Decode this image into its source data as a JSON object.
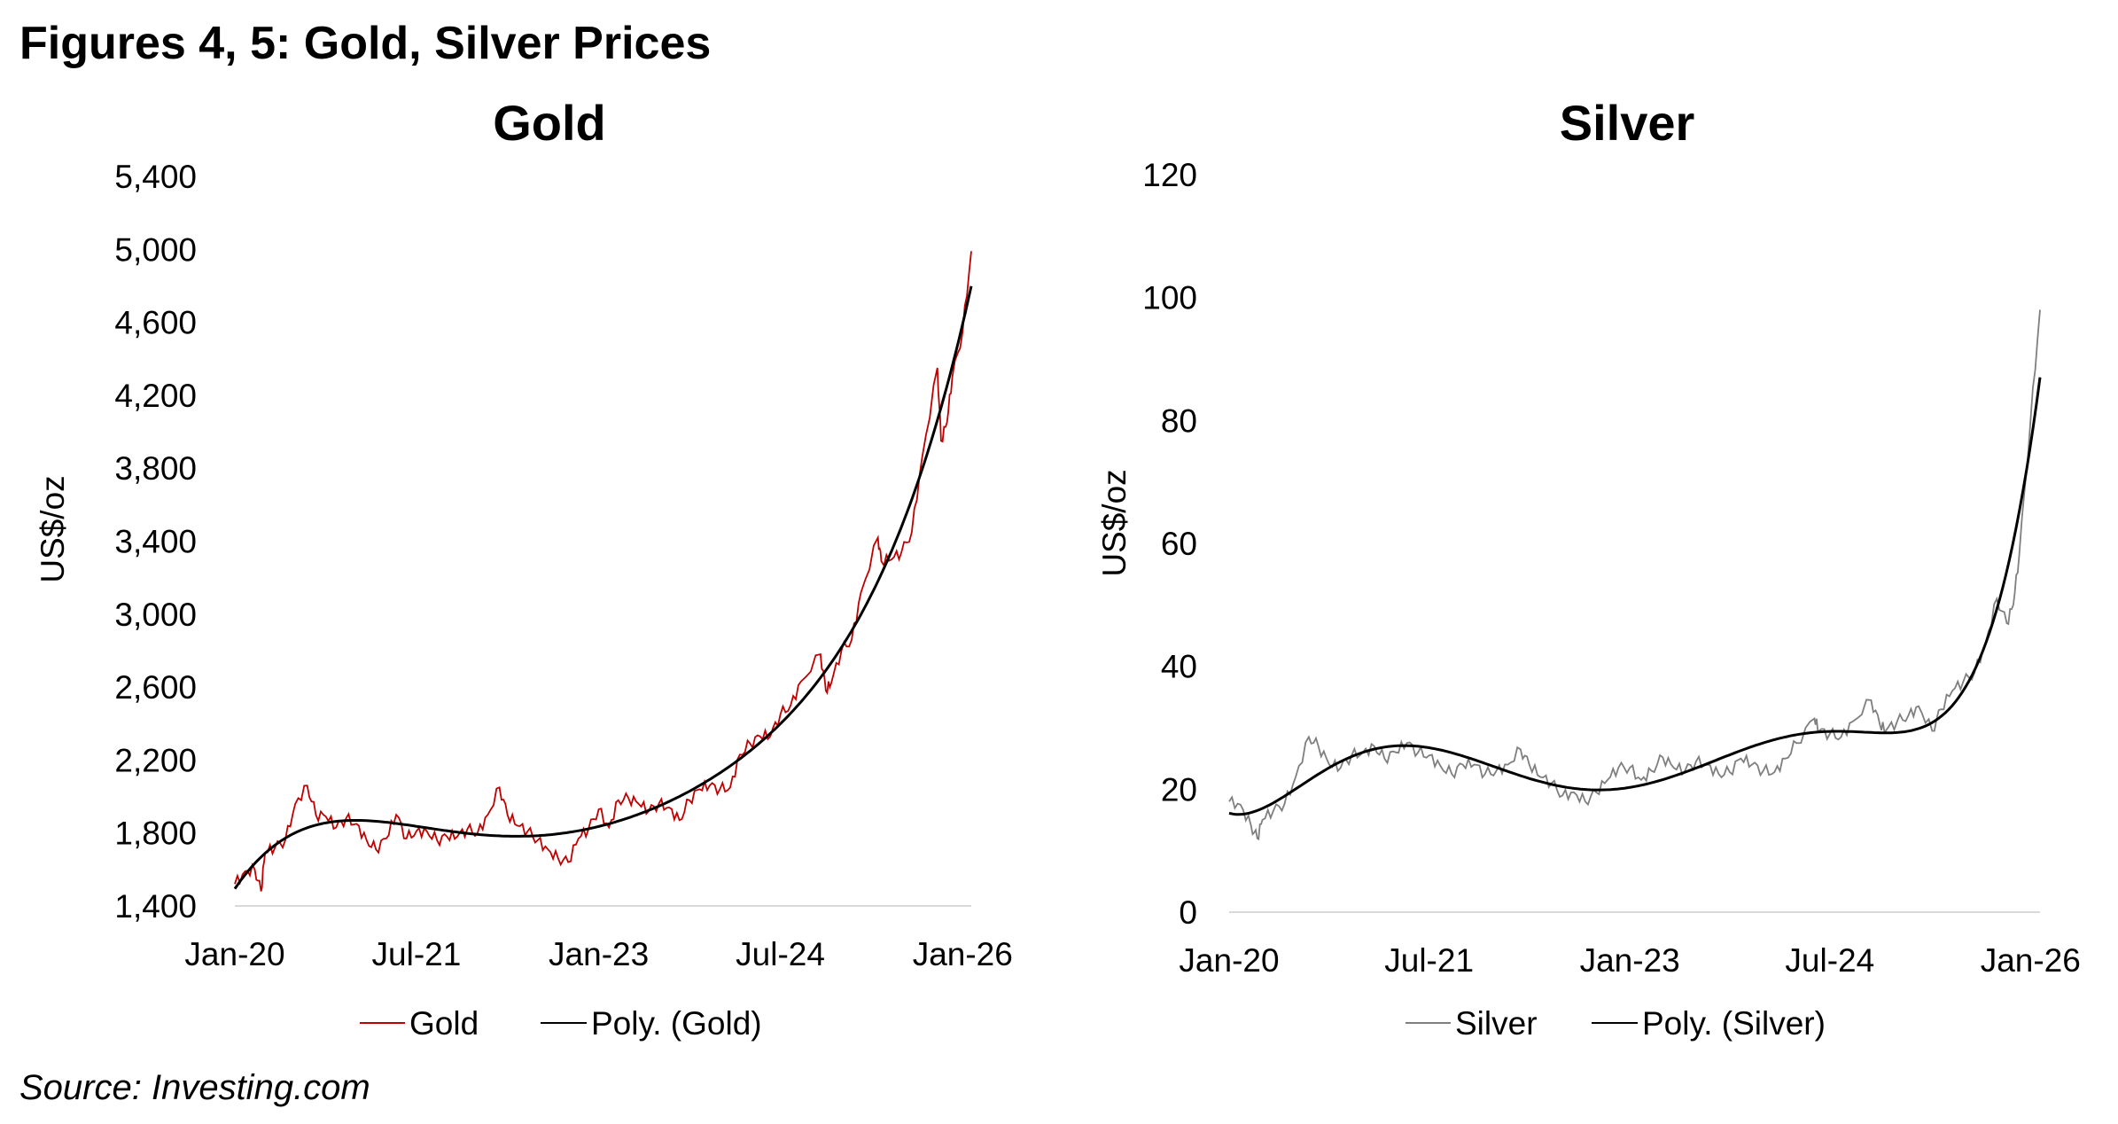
{
  "figure_title": "Figures 4, 5: Gold, Silver Prices",
  "source": "Source: Investing.com",
  "chart_data": [
    {
      "type": "line",
      "title": "Gold",
      "ylabel": "US$/oz",
      "xlabel": "",
      "ylim": [
        1400,
        5400
      ],
      "yticks": [
        "1,400",
        "1,800",
        "2,200",
        "2,600",
        "3,000",
        "3,400",
        "3,800",
        "4,200",
        "4,600",
        "5,000",
        "5,400"
      ],
      "ytick_values": [
        1400,
        1800,
        2200,
        2600,
        3000,
        3400,
        3800,
        4200,
        4600,
        5000,
        5400
      ],
      "xlim": [
        "2020-01-01",
        "2026-01-27"
      ],
      "xticks": [
        "Jan-20",
        "Jul-21",
        "Jan-23",
        "Jul-24",
        "Jan-26"
      ],
      "xtick_dates": [
        "2020-01-01",
        "2021-07-01",
        "2023-01-01",
        "2024-07-01",
        "2026-01-01"
      ],
      "grid": false,
      "legend": "bottom",
      "colors": {
        "series": "#c00000",
        "trend": "#000000",
        "baseline": "#d9d9d9"
      },
      "series": [
        {
          "name": "Gold",
          "dates": [
            "2020-01-01",
            "2020-02-01",
            "2020-03-01",
            "2020-03-20",
            "2020-04-01",
            "2020-05-01",
            "2020-06-01",
            "2020-07-01",
            "2020-08-06",
            "2020-09-01",
            "2020-10-01",
            "2020-11-01",
            "2020-12-01",
            "2021-01-01",
            "2021-02-01",
            "2021-03-01",
            "2021-04-01",
            "2021-05-01",
            "2021-06-01",
            "2021-07-01",
            "2021-08-01",
            "2021-09-01",
            "2021-10-01",
            "2021-11-01",
            "2021-12-01",
            "2022-01-01",
            "2022-02-01",
            "2022-03-08",
            "2022-04-01",
            "2022-05-01",
            "2022-06-01",
            "2022-07-01",
            "2022-08-01",
            "2022-09-01",
            "2022-10-01",
            "2022-11-01",
            "2022-12-01",
            "2023-01-01",
            "2023-02-01",
            "2023-03-01",
            "2023-04-01",
            "2023-05-01",
            "2023-06-01",
            "2023-07-01",
            "2023-08-01",
            "2023-09-01",
            "2023-10-01",
            "2023-11-01",
            "2023-12-01",
            "2024-01-01",
            "2024-02-01",
            "2024-03-01",
            "2024-04-01",
            "2024-05-01",
            "2024-06-01",
            "2024-07-01",
            "2024-08-01",
            "2024-09-01",
            "2024-10-30",
            "2024-11-15",
            "2024-12-01",
            "2025-01-01",
            "2025-02-01",
            "2025-03-01",
            "2025-04-21",
            "2025-05-01",
            "2025-06-01",
            "2025-07-01",
            "2025-08-01",
            "2025-09-01",
            "2025-10-17",
            "2025-10-28",
            "2025-11-15",
            "2025-12-01",
            "2026-01-01",
            "2026-01-27"
          ],
          "values": [
            1520,
            1590,
            1600,
            1480,
            1690,
            1720,
            1760,
            1960,
            2060,
            1900,
            1890,
            1830,
            1880,
            1850,
            1760,
            1710,
            1770,
            1900,
            1770,
            1810,
            1810,
            1760,
            1780,
            1780,
            1820,
            1800,
            1900,
            2050,
            1900,
            1840,
            1810,
            1760,
            1710,
            1660,
            1640,
            1770,
            1820,
            1930,
            1830,
            1980,
            1990,
            1960,
            1920,
            1960,
            1940,
            1870,
            1980,
            2040,
            2060,
            2040,
            2050,
            2230,
            2290,
            2330,
            2330,
            2450,
            2500,
            2630,
            2780,
            2580,
            2620,
            2800,
            2860,
            3120,
            3420,
            3290,
            3300,
            3340,
            3450,
            3860,
            4350,
            3950,
            4050,
            4300,
            4550,
            4990
          ]
        }
      ],
      "trendline": {
        "name": "Poly. (Gold)",
        "type": "polynomial"
      }
    },
    {
      "type": "line",
      "title": "Silver",
      "ylabel": "US$/oz",
      "xlabel": "",
      "ylim": [
        0,
        120
      ],
      "yticks": [
        "0",
        "20",
        "40",
        "60",
        "80",
        "100",
        "120"
      ],
      "ytick_values": [
        0,
        20,
        40,
        60,
        80,
        100,
        120
      ],
      "xlim": [
        "2020-01-01",
        "2026-01-27"
      ],
      "xticks": [
        "Jan-20",
        "Jul-21",
        "Jan-23",
        "Jul-24",
        "Jan-26"
      ],
      "xtick_dates": [
        "2020-01-01",
        "2021-07-01",
        "2023-01-01",
        "2024-07-01",
        "2026-01-01"
      ],
      "grid": false,
      "legend": "bottom",
      "colors": {
        "series": "#7f7f7f",
        "trend": "#000000",
        "baseline": "#d9d9d9"
      },
      "series": [
        {
          "name": "Silver",
          "dates": [
            "2020-01-01",
            "2020-02-01",
            "2020-03-01",
            "2020-03-18",
            "2020-04-01",
            "2020-05-01",
            "2020-06-01",
            "2020-07-01",
            "2020-08-06",
            "2020-09-01",
            "2020-10-01",
            "2020-11-01",
            "2020-12-01",
            "2021-01-01",
            "2021-02-01",
            "2021-03-01",
            "2021-04-01",
            "2021-05-01",
            "2021-06-01",
            "2021-07-01",
            "2021-08-01",
            "2021-09-01",
            "2021-10-01",
            "2021-11-01",
            "2021-12-01",
            "2022-01-01",
            "2022-02-01",
            "2022-03-08",
            "2022-04-01",
            "2022-05-01",
            "2022-06-01",
            "2022-07-01",
            "2022-08-01",
            "2022-09-01",
            "2022-10-01",
            "2022-11-01",
            "2022-12-01",
            "2023-01-01",
            "2023-02-01",
            "2023-03-01",
            "2023-04-01",
            "2023-05-01",
            "2023-06-01",
            "2023-07-01",
            "2023-08-01",
            "2023-09-01",
            "2023-10-01",
            "2023-11-01",
            "2023-12-01",
            "2024-01-01",
            "2024-02-01",
            "2024-03-01",
            "2024-04-01",
            "2024-05-20",
            "2024-06-01",
            "2024-07-01",
            "2024-08-01",
            "2024-09-01",
            "2024-10-22",
            "2024-11-15",
            "2024-12-01",
            "2025-01-01",
            "2025-02-01",
            "2025-03-01",
            "2025-04-07",
            "2025-05-01",
            "2025-06-01",
            "2025-07-01",
            "2025-08-01",
            "2025-09-01",
            "2025-10-01",
            "2025-10-28",
            "2025-11-15",
            "2025-12-01",
            "2026-01-01",
            "2026-01-27"
          ],
          "values": [
            18,
            17.5,
            14,
            12,
            15,
            16.5,
            17.7,
            22,
            28.5,
            27,
            24,
            23.5,
            25.5,
            26,
            27,
            25,
            26,
            27.5,
            26,
            25.5,
            23.8,
            22.5,
            24,
            24,
            22.5,
            23,
            24,
            26.5,
            24,
            22,
            21,
            19,
            19.5,
            18,
            19.5,
            21.5,
            23.5,
            23.5,
            21.5,
            23,
            25.2,
            23.5,
            23,
            24.5,
            24,
            22.5,
            22.8,
            25,
            24,
            23,
            22.8,
            25,
            27.5,
            31.5,
            29.5,
            29,
            28.5,
            31,
            34.5,
            30.5,
            29.5,
            31,
            32,
            33.5,
            29.5,
            33,
            36,
            37.5,
            39,
            44,
            51,
            47,
            50,
            58,
            80,
            98
          ]
        }
      ],
      "trendline": {
        "name": "Poly. (Silver)",
        "type": "polynomial"
      }
    }
  ]
}
